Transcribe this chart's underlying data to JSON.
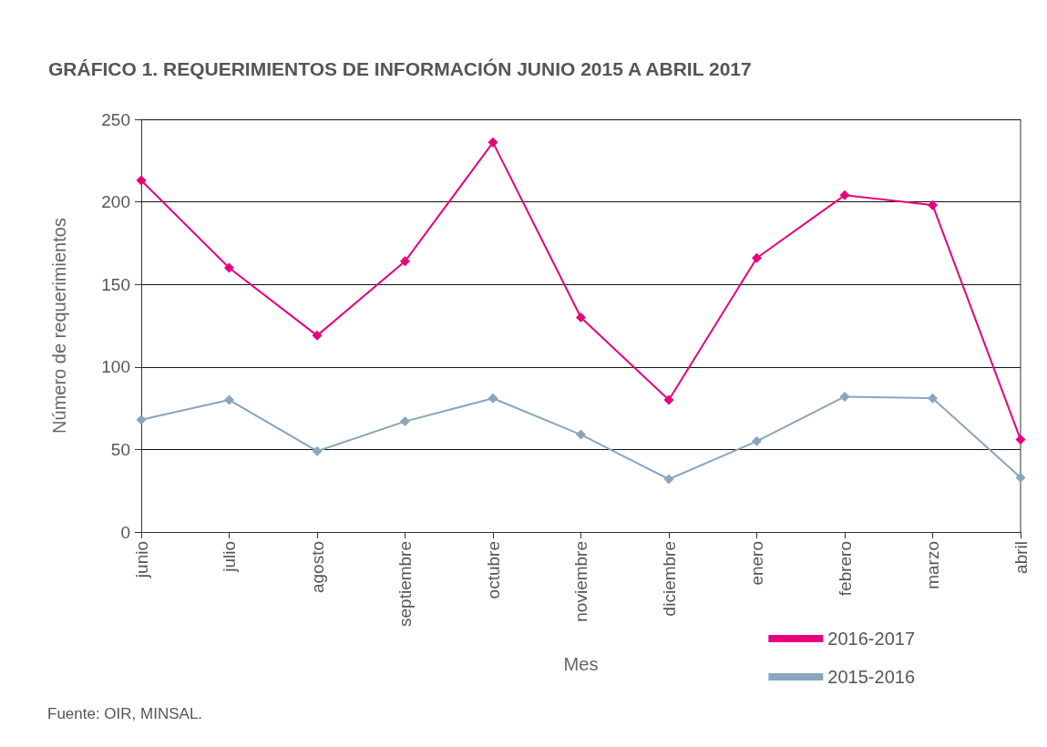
{
  "chart_data": {
    "type": "line",
    "title": "GRÁFICO 1. REQUERIMIENTOS DE INFORMACIÓN JUNIO 2015 A ABRIL 2017",
    "xlabel": "Mes",
    "ylabel": "Número de requerimientos",
    "categories": [
      "junio",
      "julio",
      "agosto",
      "septiembre",
      "octubre",
      "noviembre",
      "diciembre",
      "enero",
      "febrero",
      "marzo",
      "abril"
    ],
    "series": [
      {
        "name": "2016-2017",
        "color": "#e6007e",
        "values": [
          213,
          160,
          119,
          164,
          236,
          130,
          80,
          166,
          204,
          198,
          56
        ]
      },
      {
        "name": "2015-2016",
        "color": "#8aa5bd",
        "values": [
          68,
          80,
          49,
          67,
          81,
          59,
          32,
          55,
          82,
          81,
          33
        ]
      }
    ],
    "ylim": [
      0,
      250
    ],
    "yticks": [
      0,
      50,
      100,
      150,
      200,
      250
    ],
    "grid": "y",
    "legend": "bottom right",
    "marker": "diamond",
    "line_style": "solid",
    "annotations": [
      "Fuente: OIR, MINSAL."
    ]
  }
}
